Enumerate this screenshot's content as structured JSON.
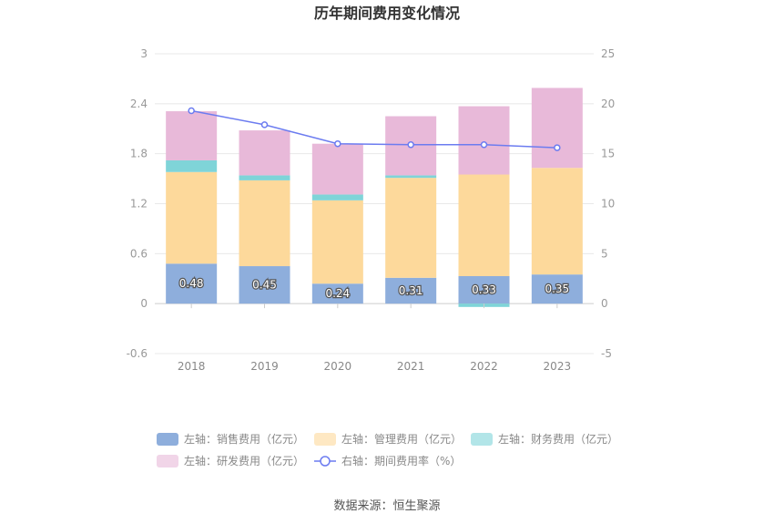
{
  "chart_data": {
    "type": "bar",
    "title": "历年期间费用变化情况",
    "categories": [
      "2018",
      "2019",
      "2020",
      "2021",
      "2022",
      "2023"
    ],
    "left_axis": {
      "min": -0.6,
      "max": 3,
      "ticks": [
        "-0.6",
        "0",
        "0.6",
        "1.2",
        "1.8",
        "2.4",
        "3"
      ]
    },
    "right_axis": {
      "min": -5,
      "max": 25,
      "ticks": [
        "-5",
        "0",
        "5",
        "10",
        "15",
        "20",
        "25"
      ]
    },
    "stacked": true,
    "series": [
      {
        "name": "左轴：销售费用（亿元）",
        "axis": "left",
        "type": "bar",
        "color": "#8eaedc",
        "values": [
          0.48,
          0.45,
          0.24,
          0.31,
          0.33,
          0.35
        ],
        "show_labels": true
      },
      {
        "name": "左轴：管理费用（亿元）",
        "axis": "left",
        "type": "bar",
        "color": "#fdd99b",
        "values": [
          1.1,
          1.03,
          1.0,
          1.2,
          1.22,
          1.28
        ]
      },
      {
        "name": "左轴：财务费用（亿元）",
        "axis": "left",
        "type": "bar",
        "color": "#7fd4d8",
        "values": [
          0.14,
          0.06,
          0.07,
          0.03,
          -0.04,
          0.0
        ]
      },
      {
        "name": "左轴：研发费用（亿元）",
        "axis": "left",
        "type": "bar",
        "color": "#e8b9d9",
        "values": [
          0.59,
          0.54,
          0.61,
          0.71,
          0.82,
          0.96
        ]
      },
      {
        "name": "右轴：期间费用率（%）",
        "axis": "right",
        "type": "line",
        "color": "#6c7cf0",
        "values": [
          19.3,
          17.9,
          16.0,
          15.9,
          15.9,
          15.6
        ]
      }
    ],
    "grid": true,
    "legend_position": "bottom"
  },
  "source": "数据来源：恒生聚源"
}
